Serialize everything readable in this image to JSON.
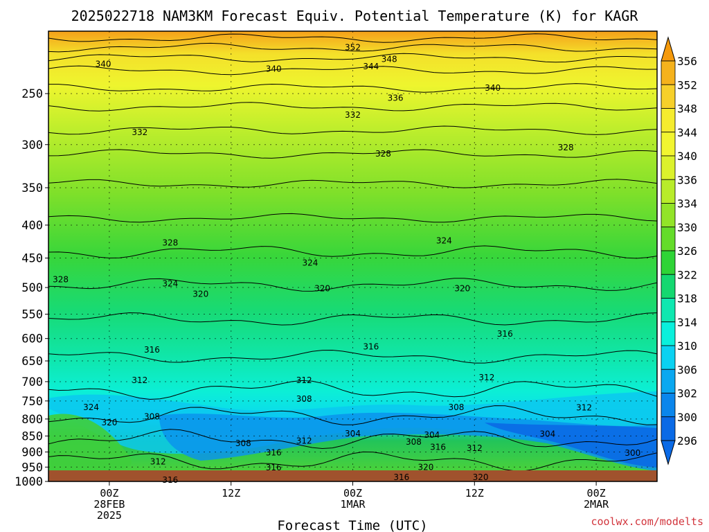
{
  "chart_data": {
    "type": "heatmap",
    "title": "2025022718 NAM3KM Forecast Equiv. Potential Temperature (K) for KAGR",
    "xlabel": "Forecast Time (UTC)",
    "ylabel": "",
    "y_scale": "log-pressure",
    "ylim": [
      1000,
      200
    ],
    "y_ticks": [
      250,
      300,
      350,
      400,
      450,
      500,
      550,
      600,
      650,
      700,
      750,
      800,
      850,
      900,
      950,
      1000
    ],
    "x_ticks": [
      {
        "line1": "00Z",
        "line2": "28FEB",
        "line3": "2025"
      },
      {
        "line1": "12Z",
        "line2": "",
        "line3": ""
      },
      {
        "line1": "00Z",
        "line2": "1MAR",
        "line3": ""
      },
      {
        "line1": "12Z",
        "line2": "",
        "line3": ""
      },
      {
        "line1": "00Z",
        "line2": "2MAR",
        "line3": ""
      }
    ],
    "grid": true,
    "colorbar": {
      "levels": [
        296,
        300,
        302,
        306,
        310,
        314,
        318,
        322,
        326,
        330,
        334,
        336,
        340,
        344,
        348,
        352,
        356
      ],
      "labels": [
        "356",
        "352",
        "348",
        "344",
        "340",
        "336",
        "334",
        "330",
        "326",
        "322",
        "318",
        "314",
        "310",
        "306",
        "302",
        "300",
        "296"
      ],
      "colors_top_to_bottom": [
        "#f59a0c",
        "#f5b21c",
        "#f7d02a",
        "#f5ec2e",
        "#f2f530",
        "#dcf22c",
        "#b8ec2a",
        "#92e428",
        "#64dc2a",
        "#2ed436",
        "#14d870",
        "#0ee8b0",
        "#0af0dc",
        "#0ad2f2",
        "#0aa8f0",
        "#0a86ec",
        "#0a6ae6"
      ]
    },
    "contour_labels": [
      {
        "text": "352",
        "t": 0.5,
        "p": 212
      },
      {
        "text": "348",
        "t": 0.56,
        "p": 221
      },
      {
        "text": "344",
        "t": 0.53,
        "p": 227
      },
      {
        "text": "340",
        "t": 0.09,
        "p": 225
      },
      {
        "text": "340",
        "t": 0.37,
        "p": 229
      },
      {
        "text": "340",
        "t": 0.73,
        "p": 245
      },
      {
        "text": "336",
        "t": 0.57,
        "p": 254
      },
      {
        "text": "332",
        "t": 0.5,
        "p": 270
      },
      {
        "text": "332",
        "t": 0.15,
        "p": 287
      },
      {
        "text": "328",
        "t": 0.55,
        "p": 310
      },
      {
        "text": "328",
        "t": 0.85,
        "p": 303
      },
      {
        "text": "328",
        "t": 0.2,
        "p": 426
      },
      {
        "text": "328",
        "t": 0.02,
        "p": 486
      },
      {
        "text": "324",
        "t": 0.65,
        "p": 423
      },
      {
        "text": "324",
        "t": 0.43,
        "p": 458
      },
      {
        "text": "324",
        "t": 0.2,
        "p": 493
      },
      {
        "text": "320",
        "t": 0.25,
        "p": 512
      },
      {
        "text": "320",
        "t": 0.45,
        "p": 502
      },
      {
        "text": "320",
        "t": 0.68,
        "p": 502
      },
      {
        "text": "316",
        "t": 0.75,
        "p": 590
      },
      {
        "text": "316",
        "t": 0.53,
        "p": 618
      },
      {
        "text": "316",
        "t": 0.17,
        "p": 625
      },
      {
        "text": "312",
        "t": 0.15,
        "p": 697
      },
      {
        "text": "312",
        "t": 0.42,
        "p": 697
      },
      {
        "text": "312",
        "t": 0.72,
        "p": 690
      },
      {
        "text": "312",
        "t": 0.88,
        "p": 768
      },
      {
        "text": "308",
        "t": 0.42,
        "p": 745
      },
      {
        "text": "308",
        "t": 0.67,
        "p": 767
      },
      {
        "text": "308",
        "t": 0.17,
        "p": 793
      },
      {
        "text": "308",
        "t": 0.32,
        "p": 873
      },
      {
        "text": "308",
        "t": 0.6,
        "p": 868
      },
      {
        "text": "304",
        "t": 0.5,
        "p": 843
      },
      {
        "text": "304",
        "t": 0.63,
        "p": 847
      },
      {
        "text": "304",
        "t": 0.82,
        "p": 844
      },
      {
        "text": "324",
        "t": 0.07,
        "p": 767
      },
      {
        "text": "320",
        "t": 0.1,
        "p": 810
      },
      {
        "text": "312",
        "t": 0.42,
        "p": 865
      },
      {
        "text": "312",
        "t": 0.18,
        "p": 932
      },
      {
        "text": "312",
        "t": 0.7,
        "p": 888
      },
      {
        "text": "316",
        "t": 0.37,
        "p": 902
      },
      {
        "text": "316",
        "t": 0.37,
        "p": 952
      },
      {
        "text": "316",
        "t": 0.64,
        "p": 885
      },
      {
        "text": "316",
        "t": 0.2,
        "p": 995
      },
      {
        "text": "316",
        "t": 0.58,
        "p": 985
      },
      {
        "text": "320",
        "t": 0.62,
        "p": 950
      },
      {
        "text": "320",
        "t": 0.71,
        "p": 985
      },
      {
        "text": "300",
        "t": 0.96,
        "p": 903
      }
    ]
  },
  "watermark": "coolwx.com/modelts"
}
